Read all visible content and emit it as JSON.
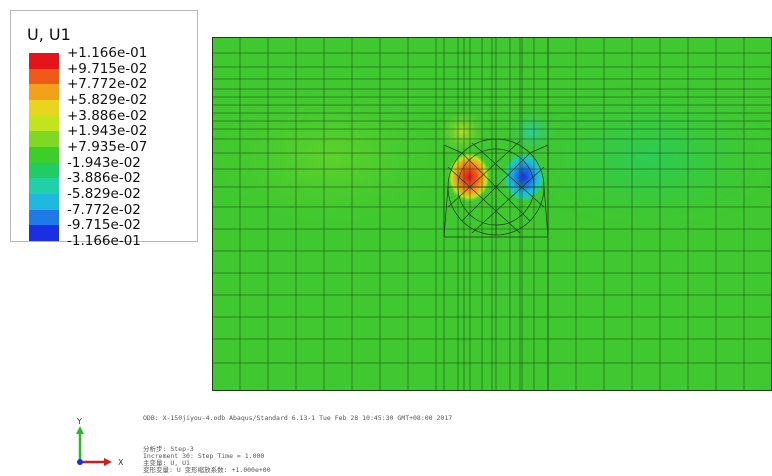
{
  "legend": {
    "title": "U, U1",
    "labels": [
      "+1.166e-01",
      "+9.715e-02",
      "+7.772e-02",
      "+5.829e-02",
      "+3.886e-02",
      "+1.943e-02",
      "+7.935e-07",
      "-1.943e-02",
      "-3.886e-02",
      "-5.829e-02",
      "-7.772e-02",
      "-9.715e-02",
      "-1.166e-01"
    ],
    "colors": [
      "#e4141a",
      "#ef5a18",
      "#f3a01a",
      "#e9d41f",
      "#c2e41f",
      "#7fd924",
      "#3dce2a",
      "#21cd63",
      "#20d0a6",
      "#1fb8e0",
      "#1f7ae8",
      "#1a2fe2"
    ]
  },
  "info": {
    "odb_line": "ODB: X-150jiyou-4.odb    Abaqus/Standard 6.13-1    Tue Feb 28 10:45:30 GMT+08:00 2017",
    "step_line": "分析步: Step-3",
    "increment_line": "Increment    30: Step Time =    1.000",
    "primary_var_line": "主变量: U, U1",
    "deformed_var_line": "变形变量: U   变形缩放系数: +1.000e+00"
  },
  "triad": {
    "y_label": "Y",
    "x_label": "X"
  },
  "model": {
    "background_color": "#3fc82f",
    "grid_line_color": "#1a3d14"
  }
}
